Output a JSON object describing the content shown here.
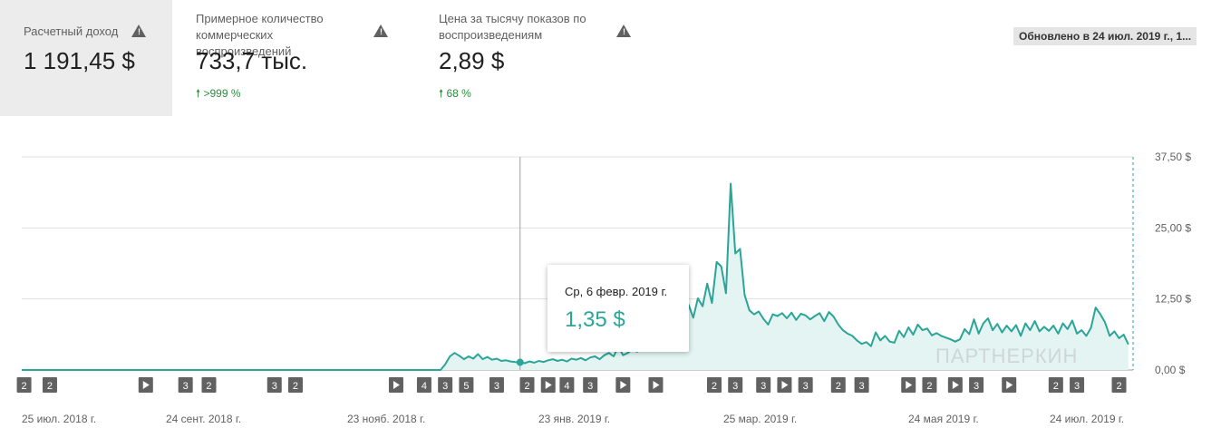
{
  "metrics": [
    {
      "label": "Расчетный доход",
      "value": "1 191,45 $",
      "delta": "",
      "selected": true
    },
    {
      "label": "Примерное количество коммерческих воспроизведений",
      "value": "733,7 тыс.",
      "delta": ">999 %",
      "selected": false
    },
    {
      "label": "Цена за тысячу показов по воспроизведениям",
      "value": "2,89 $",
      "delta": "68 %",
      "selected": false
    }
  ],
  "updated": "Обновлено в 24 июл. 2019 г., 1...",
  "tooltip": {
    "date": "Ср, 6 февр. 2019 г.",
    "value": "1,35 $"
  },
  "watermark": "ПАРТНЕРКИН",
  "colors": {
    "line": "#2aa598",
    "fill": "#e3f4f2",
    "marker_bg": "#616161",
    "delta": "#2e8b3e"
  },
  "chart_data": {
    "type": "area",
    "y_ticks": [
      "37,50 $",
      "25,00 $",
      "12,50 $",
      "0,00 $"
    ],
    "ylim": [
      0,
      37.5
    ],
    "x_labels": [
      "25 июл. 2018 г.",
      "24 сент. 2018 г.",
      "23 нояб. 2018 г.",
      "23 янв. 2019 г.",
      "25 мар. 2019 г.",
      "24 мая 2019 г.",
      "24 июл. 2019 г."
    ],
    "series": [
      {
        "values": [
          [
            0,
            0
          ],
          [
            179,
            0
          ],
          [
            181,
            1.0
          ],
          [
            183,
            2.4
          ],
          [
            185,
            3.0
          ],
          [
            187,
            2.5
          ],
          [
            189,
            1.9
          ],
          [
            191,
            2.4
          ],
          [
            193,
            2.0
          ],
          [
            195,
            2.8
          ],
          [
            197,
            1.9
          ],
          [
            199,
            2.3
          ],
          [
            201,
            1.8
          ],
          [
            203,
            2.0
          ],
          [
            205,
            1.6
          ],
          [
            207,
            1.7
          ],
          [
            209,
            1.5
          ],
          [
            211,
            1.4
          ],
          [
            213,
            1.35
          ],
          [
            215,
            1.2
          ],
          [
            217,
            1.5
          ],
          [
            219,
            1.3
          ],
          [
            221,
            1.6
          ],
          [
            223,
            1.4
          ],
          [
            225,
            1.7
          ],
          [
            227,
            1.9
          ],
          [
            229,
            1.6
          ],
          [
            231,
            1.8
          ],
          [
            233,
            1.5
          ],
          [
            235,
            2.0
          ],
          [
            237,
            1.8
          ],
          [
            239,
            2.1
          ],
          [
            241,
            1.7
          ],
          [
            243,
            2.2
          ],
          [
            245,
            2.4
          ],
          [
            247,
            1.9
          ],
          [
            249,
            2.6
          ],
          [
            251,
            3.0
          ],
          [
            253,
            2.4
          ],
          [
            255,
            4.2
          ],
          [
            257,
            2.6
          ],
          [
            259,
            3.0
          ],
          [
            261,
            3.6
          ],
          [
            263,
            3.2
          ],
          [
            265,
            3.9
          ],
          [
            267,
            3.4
          ],
          [
            269,
            4.0
          ],
          [
            271,
            3.7
          ],
          [
            273,
            4.6
          ],
          [
            275,
            4.3
          ],
          [
            277,
            5.1
          ],
          [
            279,
            4.8
          ],
          [
            281,
            6.4
          ],
          [
            283,
            7.8
          ],
          [
            285,
            11.5
          ],
          [
            287,
            9.2
          ],
          [
            289,
            12.6
          ],
          [
            291,
            11.2
          ],
          [
            293,
            15.2
          ],
          [
            295,
            11.8
          ],
          [
            297,
            19.0
          ],
          [
            299,
            18.2
          ],
          [
            301,
            13.5
          ],
          [
            303,
            32.8
          ],
          [
            305,
            20.5
          ],
          [
            307,
            21.3
          ],
          [
            309,
            13.2
          ],
          [
            311,
            10.5
          ],
          [
            313,
            9.8
          ],
          [
            315,
            10.3
          ],
          [
            317,
            9.0
          ],
          [
            319,
            8.0
          ],
          [
            321,
            9.8
          ],
          [
            323,
            9.5
          ],
          [
            325,
            10.0
          ],
          [
            327,
            9.1
          ],
          [
            329,
            10.1
          ],
          [
            331,
            8.8
          ],
          [
            333,
            9.9
          ],
          [
            335,
            9.6
          ],
          [
            337,
            8.9
          ],
          [
            339,
            9.5
          ],
          [
            341,
            10.0
          ],
          [
            343,
            8.6
          ],
          [
            345,
            10.2
          ],
          [
            347,
            9.4
          ],
          [
            349,
            8.0
          ],
          [
            351,
            7.0
          ],
          [
            353,
            6.4
          ],
          [
            355,
            6.0
          ],
          [
            357,
            5.2
          ],
          [
            359,
            4.6
          ],
          [
            361,
            4.9
          ],
          [
            363,
            4.2
          ],
          [
            365,
            6.6
          ],
          [
            367,
            5.2
          ],
          [
            369,
            6.0
          ],
          [
            371,
            5.0
          ],
          [
            373,
            4.8
          ],
          [
            375,
            6.9
          ],
          [
            377,
            5.8
          ],
          [
            379,
            7.5
          ],
          [
            381,
            6.2
          ],
          [
            383,
            8.0
          ],
          [
            385,
            7.0
          ],
          [
            387,
            7.3
          ],
          [
            389,
            6.1
          ],
          [
            391,
            6.5
          ],
          [
            393,
            6.0
          ],
          [
            395,
            5.7
          ],
          [
            397,
            5.4
          ],
          [
            399,
            5.0
          ],
          [
            401,
            5.4
          ],
          [
            403,
            7.2
          ],
          [
            405,
            6.3
          ],
          [
            407,
            8.9
          ],
          [
            409,
            6.4
          ],
          [
            411,
            8.2
          ],
          [
            413,
            9.1
          ],
          [
            415,
            7.0
          ],
          [
            417,
            8.1
          ],
          [
            419,
            6.6
          ],
          [
            421,
            7.8
          ],
          [
            423,
            6.8
          ],
          [
            425,
            7.9
          ],
          [
            427,
            6.0
          ],
          [
            429,
            8.2
          ],
          [
            431,
            7.0
          ],
          [
            433,
            8.6
          ],
          [
            435,
            6.8
          ],
          [
            437,
            7.6
          ],
          [
            439,
            6.9
          ],
          [
            441,
            7.8
          ],
          [
            443,
            6.4
          ],
          [
            445,
            8.2
          ],
          [
            447,
            7.2
          ],
          [
            449,
            8.7
          ],
          [
            451,
            6.4
          ],
          [
            453,
            7.0
          ],
          [
            455,
            6.0
          ],
          [
            457,
            7.4
          ],
          [
            459,
            11.0
          ],
          [
            461,
            9.8
          ],
          [
            463,
            8.4
          ],
          [
            465,
            6.0
          ],
          [
            467,
            6.8
          ],
          [
            469,
            5.6
          ],
          [
            471,
            6.2
          ],
          [
            473,
            4.5
          ]
        ]
      }
    ],
    "markers": [
      {
        "label": "2",
        "x": 1
      },
      {
        "label": "2",
        "x": 12
      },
      {
        "label": "▶",
        "x": 53
      },
      {
        "label": "3",
        "x": 70
      },
      {
        "label": "2",
        "x": 80
      },
      {
        "label": "3",
        "x": 108
      },
      {
        "label": "2",
        "x": 117
      },
      {
        "label": "▶",
        "x": 160
      },
      {
        "label": "4",
        "x": 172
      },
      {
        "label": "3",
        "x": 181
      },
      {
        "label": "5",
        "x": 190
      },
      {
        "label": "3",
        "x": 203
      },
      {
        "label": "2",
        "x": 216
      },
      {
        "label": "▶",
        "x": 225
      },
      {
        "label": "4",
        "x": 233
      },
      {
        "label": "3",
        "x": 243
      },
      {
        "label": "▶",
        "x": 257
      },
      {
        "label": "▶",
        "x": 271
      },
      {
        "label": "2",
        "x": 296
      },
      {
        "label": "3",
        "x": 305
      },
      {
        "label": "3",
        "x": 317
      },
      {
        "label": "▶",
        "x": 326
      },
      {
        "label": "3",
        "x": 335
      },
      {
        "label": "2",
        "x": 349
      },
      {
        "label": "3",
        "x": 359
      },
      {
        "label": "▶",
        "x": 379
      },
      {
        "label": "2",
        "x": 388
      },
      {
        "label": "▶",
        "x": 399
      },
      {
        "label": "3",
        "x": 408
      },
      {
        "label": "▶",
        "x": 422
      },
      {
        "label": "2",
        "x": 442
      },
      {
        "label": "3",
        "x": 451
      },
      {
        "label": "2",
        "x": 469
      }
    ],
    "tooltip_x": 213,
    "grid": true,
    "legend": "none"
  }
}
